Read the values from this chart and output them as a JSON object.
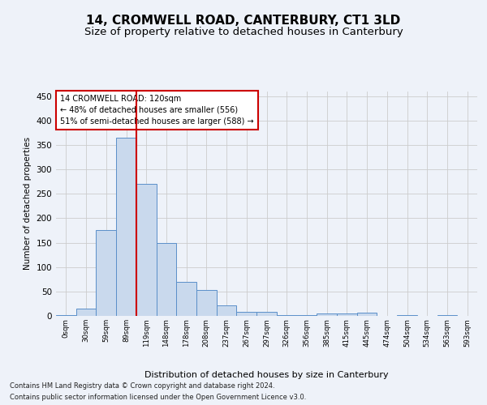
{
  "title": "14, CROMWELL ROAD, CANTERBURY, CT1 3LD",
  "subtitle": "Size of property relative to detached houses in Canterbury",
  "xlabel": "Distribution of detached houses by size in Canterbury",
  "ylabel": "Number of detached properties",
  "bin_labels": [
    "0sqm",
    "30sqm",
    "59sqm",
    "89sqm",
    "119sqm",
    "148sqm",
    "178sqm",
    "208sqm",
    "237sqm",
    "267sqm",
    "297sqm",
    "326sqm",
    "356sqm",
    "385sqm",
    "415sqm",
    "445sqm",
    "474sqm",
    "504sqm",
    "534sqm",
    "563sqm",
    "593sqm"
  ],
  "bar_heights": [
    2,
    15,
    175,
    365,
    270,
    150,
    70,
    53,
    22,
    8,
    8,
    2,
    2,
    5,
    5,
    6,
    0,
    1,
    0,
    2,
    0
  ],
  "bar_color": "#c9d9ed",
  "bar_edge_color": "#5b8fc9",
  "vline_color": "#cc0000",
  "annotation_text": "14 CROMWELL ROAD: 120sqm\n← 48% of detached houses are smaller (556)\n51% of semi-detached houses are larger (588) →",
  "annotation_box_color": "#ffffff",
  "annotation_box_edge": "#cc0000",
  "grid_color": "#cccccc",
  "background_color": "#eef2f9",
  "plot_bg_color": "#eef2f9",
  "footer_line1": "Contains HM Land Registry data © Crown copyright and database right 2024.",
  "footer_line2": "Contains public sector information licensed under the Open Government Licence v3.0.",
  "ylim": [
    0,
    460
  ],
  "yticks": [
    0,
    50,
    100,
    150,
    200,
    250,
    300,
    350,
    400,
    450
  ],
  "vline_bin_index": 4,
  "title_fontsize": 11,
  "subtitle_fontsize": 9.5
}
